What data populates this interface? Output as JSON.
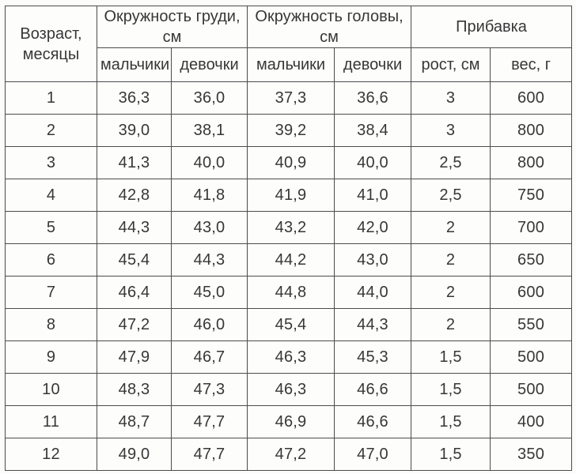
{
  "page": {
    "background_color": "#fbfaf8",
    "paper_color": "#fdfdfc",
    "border_color": "#4c4c4c",
    "text_color": "#373737"
  },
  "table": {
    "header": {
      "age": "Возраст, месяцы",
      "chest_group": "Окружность груди, см",
      "head_group": "Окружность головы, см",
      "gain_group": "Прибавка",
      "chest_boys": "мальчики",
      "chest_girls": "девочки",
      "head_boys": "мальчики",
      "head_girls": "девочки",
      "gain_height": "рост, см",
      "gain_weight": "вес, г"
    },
    "column_keys": [
      "age",
      "chest-boys",
      "chest-girls",
      "head-boys",
      "head-girls",
      "gain-height",
      "gain-weight"
    ],
    "rows": [
      [
        "1",
        "36,3",
        "36,0",
        "37,3",
        "36,6",
        "3",
        "600"
      ],
      [
        "2",
        "39,0",
        "38,1",
        "39,2",
        "38,4",
        "3",
        "800"
      ],
      [
        "3",
        "41,3",
        "40,0",
        "40,9",
        "40,0",
        "2,5",
        "800"
      ],
      [
        "4",
        "42,8",
        "41,8",
        "41,9",
        "41,0",
        "2,5",
        "750"
      ],
      [
        "5",
        "44,3",
        "43,0",
        "43,2",
        "42,0",
        "2",
        "700"
      ],
      [
        "6",
        "45,4",
        "44,3",
        "44,2",
        "43,0",
        "2",
        "650"
      ],
      [
        "7",
        "46,4",
        "45,0",
        "44,8",
        "44,0",
        "2",
        "600"
      ],
      [
        "8",
        "47,2",
        "46,0",
        "45,4",
        "44,3",
        "2",
        "550"
      ],
      [
        "9",
        "47,9",
        "46,7",
        "46,3",
        "45,3",
        "1,5",
        "500"
      ],
      [
        "10",
        "48,3",
        "47,3",
        "46,3",
        "46,6",
        "1,5",
        "500"
      ],
      [
        "11",
        "48,7",
        "47,7",
        "46,9",
        "46,6",
        "1,5",
        "400"
      ],
      [
        "12",
        "49,0",
        "47,7",
        "47,2",
        "47,0",
        "1,5",
        "350"
      ]
    ]
  }
}
